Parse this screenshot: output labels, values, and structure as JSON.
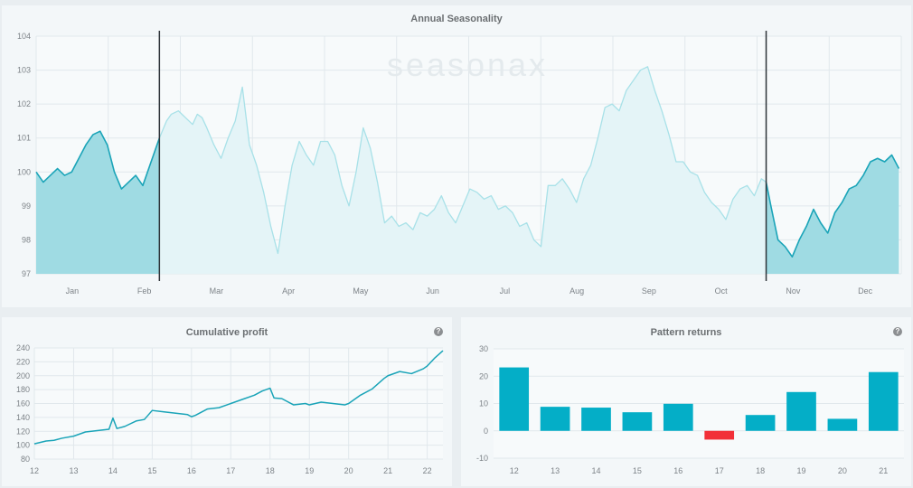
{
  "chart_data": [
    {
      "type": "area",
      "title": "Annual Seasonality",
      "watermark": "seasonax",
      "ylim": [
        97,
        104
      ],
      "y_ticks": [
        97,
        98,
        99,
        100,
        101,
        102,
        103,
        104
      ],
      "x_tick_labels": [
        "Jan",
        "Feb",
        "Mar",
        "Apr",
        "May",
        "Jun",
        "Jul",
        "Aug",
        "Sep",
        "Oct",
        "Nov",
        "Dec"
      ],
      "x_unit": "day of year",
      "highlight_window": {
        "start_day": 52,
        "end_day": 308
      },
      "colors": {
        "active": "#1aa4b8",
        "inactive": "#a8e1e8",
        "fill_active": "#9fdbe3",
        "fill_inactive": "#e4f4f7",
        "marker": "#2d3338"
      },
      "grid": true,
      "series": [
        {
          "x": [
            0,
            3,
            6,
            9,
            12,
            15,
            18,
            21,
            24,
            27,
            30,
            33,
            36,
            39,
            42,
            45,
            48,
            50,
            52,
            55,
            57,
            60,
            63,
            66,
            68,
            70,
            72,
            75,
            78,
            81,
            84,
            87,
            90,
            93,
            96,
            99,
            102,
            105,
            108,
            111,
            114,
            117,
            120,
            123,
            126,
            129,
            132,
            135,
            138,
            141,
            144,
            147,
            150,
            153,
            156,
            159,
            162,
            165,
            168,
            171,
            174,
            177,
            180,
            183,
            186,
            189,
            192,
            195,
            198,
            201,
            204,
            207,
            210,
            213,
            216,
            219,
            222,
            225,
            228,
            231,
            234,
            237,
            240,
            243,
            246,
            249,
            252,
            255,
            258,
            261,
            264,
            267,
            270,
            273,
            276,
            279,
            282,
            285,
            288,
            291,
            294,
            297,
            300,
            303,
            306,
            308,
            310,
            313,
            316,
            319,
            322,
            325,
            328,
            331,
            334,
            337,
            340,
            343,
            346,
            349,
            352,
            355,
            358,
            361,
            364
          ],
          "y": [
            100.0,
            99.7,
            99.9,
            100.1,
            99.9,
            100.0,
            100.4,
            100.8,
            101.1,
            101.2,
            100.8,
            100.0,
            99.5,
            99.7,
            99.9,
            99.6,
            100.2,
            100.6,
            101.0,
            101.5,
            101.7,
            101.8,
            101.6,
            101.4,
            101.7,
            101.6,
            101.3,
            100.8,
            100.4,
            101.0,
            101.5,
            102.5,
            100.8,
            100.2,
            99.4,
            98.4,
            97.6,
            99.0,
            100.2,
            100.9,
            100.5,
            100.2,
            100.9,
            100.9,
            100.5,
            99.6,
            99.0,
            100.0,
            101.3,
            100.7,
            99.7,
            98.5,
            98.7,
            98.4,
            98.5,
            98.3,
            98.8,
            98.7,
            98.9,
            99.3,
            98.8,
            98.5,
            99.0,
            99.5,
            99.4,
            99.2,
            99.3,
            98.9,
            99.0,
            98.8,
            98.4,
            98.5,
            98.0,
            97.8,
            99.6,
            99.6,
            99.8,
            99.5,
            99.1,
            99.8,
            100.2,
            101.0,
            101.9,
            102.0,
            101.8,
            102.4,
            102.7,
            103.0,
            103.1,
            102.4,
            101.8,
            101.1,
            100.3,
            100.3,
            100.0,
            99.9,
            99.4,
            99.1,
            98.9,
            98.6,
            99.2,
            99.5,
            99.6,
            99.3,
            99.8,
            99.7,
            99.0,
            98.0,
            97.8,
            97.5,
            98.0,
            98.4,
            98.9,
            98.5,
            98.2,
            98.8,
            99.1,
            99.5,
            99.6,
            99.9,
            100.3,
            100.4,
            100.3,
            100.5,
            100.1
          ]
        }
      ]
    },
    {
      "type": "line",
      "title": "Cumulative profit",
      "ylim": [
        80,
        240
      ],
      "y_ticks": [
        80,
        100,
        120,
        140,
        160,
        180,
        200,
        220,
        240
      ],
      "x_tick_labels": [
        "12",
        "13",
        "14",
        "15",
        "16",
        "17",
        "18",
        "19",
        "20",
        "21",
        "22"
      ],
      "color": "#1aa4b8",
      "grid": true,
      "series": [
        {
          "x": [
            12,
            12.3,
            12.5,
            12.7,
            13,
            13.3,
            13.6,
            13.9,
            14,
            14.1,
            14.3,
            14.6,
            14.8,
            15,
            15.3,
            15.6,
            15.9,
            16,
            16.1,
            16.4,
            16.7,
            17,
            17.3,
            17.6,
            17.8,
            18,
            18.1,
            18.3,
            18.6,
            18.9,
            19,
            19.3,
            19.6,
            19.9,
            20,
            20.3,
            20.6,
            20.9,
            21,
            21.3,
            21.6,
            21.9,
            22,
            22.2,
            22.4
          ],
          "y": [
            102,
            106,
            107,
            110,
            113,
            119,
            121,
            123,
            139,
            124,
            127,
            135,
            137,
            150,
            148,
            146,
            144,
            141,
            143,
            152,
            154,
            160,
            166,
            172,
            178,
            182,
            168,
            167,
            158,
            160,
            158,
            162,
            160,
            158,
            160,
            172,
            181,
            196,
            200,
            206,
            203,
            210,
            214,
            226,
            236
          ]
        }
      ]
    },
    {
      "type": "bar",
      "title": "Pattern returns",
      "categories": [
        "12",
        "13",
        "14",
        "15",
        "16",
        "17",
        "18",
        "19",
        "20",
        "21"
      ],
      "values": [
        23.2,
        8.8,
        8.5,
        6.8,
        9.9,
        -3.2,
        5.8,
        14.2,
        4.4,
        21.5
      ],
      "ylim": [
        -10,
        30
      ],
      "y_ticks": [
        -10,
        0,
        10,
        20,
        30
      ],
      "colors": {
        "positive": "#04aec7",
        "negative": "#f23038"
      },
      "grid": true
    }
  ]
}
